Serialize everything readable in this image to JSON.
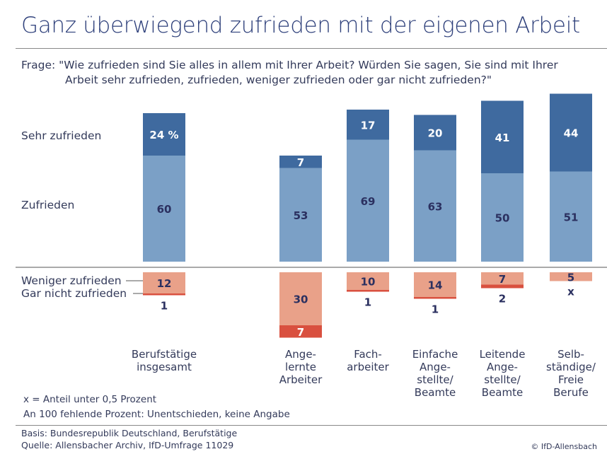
{
  "title": "Ganz überwiegend zufrieden mit der eigenen Arbeit",
  "question_line1": "Frage: \"Wie zufrieden sind Sie alles in allem mit Ihrer Arbeit? Würden Sie sagen, Sie sind mit Ihrer",
  "question_line2": "Arbeit sehr zufrieden, zufrieden, weniger zufrieden oder gar nicht zufrieden?\"",
  "chart_data": {
    "type": "bar",
    "subtype": "diverging-stacked",
    "unit": "%",
    "categories": [
      "Berufstätige\ninsgesamt",
      "Ange-\nlernte\nArbeiter",
      "Fach-\narbeiter",
      "Einfache\nAnge-\nstellte/\nBeamte",
      "Leitende\nAnge-\nstellte/\nBeamte",
      "Selb-\nständige/\nFreie\nBerufe"
    ],
    "series": [
      {
        "name": "Sehr zufrieden",
        "direction": "up",
        "color": "#3f6a9f",
        "values": [
          24,
          7,
          17,
          20,
          41,
          44
        ],
        "labels": [
          "24 %",
          "7",
          "17",
          "20",
          "41",
          "44"
        ]
      },
      {
        "name": "Zufrieden",
        "direction": "up",
        "color": "#7ba0c6",
        "values": [
          60,
          53,
          69,
          63,
          50,
          51
        ],
        "labels": [
          "60",
          "53",
          "69",
          "63",
          "50",
          "51"
        ]
      },
      {
        "name": "Weniger zufrieden",
        "direction": "down",
        "color": "#e9a189",
        "values": [
          12,
          30,
          10,
          14,
          7,
          5
        ],
        "labels": [
          "12",
          "30",
          "10",
          "14",
          "7",
          "5"
        ]
      },
      {
        "name": "Gar nicht zufrieden",
        "direction": "down",
        "color": "#d9503f",
        "values": [
          1,
          7,
          1,
          1,
          2,
          0
        ],
        "labels": [
          "1",
          "7",
          "1",
          "1",
          "2",
          "x"
        ]
      }
    ]
  },
  "notes": [
    "x = Anteil unter 0,5 Prozent",
    "An 100 fehlende Prozent: Unentschieden, keine Angabe"
  ],
  "footer": {
    "basis": "Basis: Bundesrepublik Deutschland, Berufstätige",
    "source": "Quelle: Allensbacher Archiv, IfD-Umfrage 11029",
    "copyright": "© IfD-Allensbach"
  }
}
